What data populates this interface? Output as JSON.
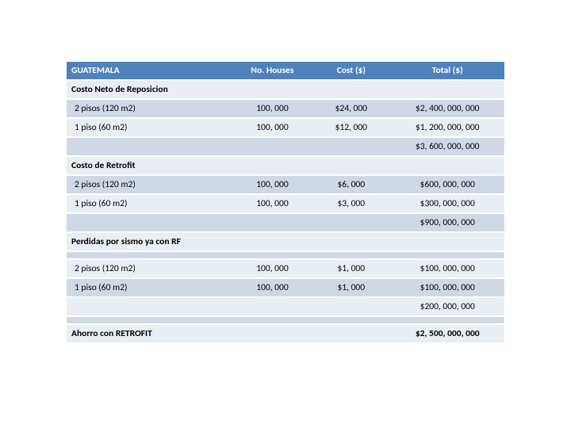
{
  "header": {
    "c0": "GUATEMALA",
    "c1": "No. Houses",
    "c2": "Cost ($)",
    "c3": "Total ($)"
  },
  "rows": [
    {
      "label": "Costo Neto de Reposicion",
      "houses": "",
      "cost": "",
      "total": "",
      "bold": true,
      "band": "plain"
    },
    {
      "label": "2 pisos (120 m2)",
      "houses": "100, 000",
      "cost": "$24, 000",
      "total": "$2, 400, 000, 000",
      "bold": false,
      "band": "band",
      "indent": true
    },
    {
      "label": "1 piso (60 m2)",
      "houses": "100, 000",
      "cost": "$12, 000",
      "total": "$1, 200, 000, 000",
      "bold": false,
      "band": "plain",
      "indent": true
    },
    {
      "label": "",
      "houses": "",
      "cost": "",
      "total": "$3, 600, 000, 000",
      "bold": false,
      "band": "band"
    },
    {
      "label": "Costo de Retrofit",
      "houses": "",
      "cost": "",
      "total": "",
      "bold": true,
      "band": "plain"
    },
    {
      "label": "2 pisos (120 m2)",
      "houses": "100, 000",
      "cost": "$6, 000",
      "total": "$600, 000, 000",
      "bold": false,
      "band": "band",
      "indent": true
    },
    {
      "label": "1 piso (60 m2)",
      "houses": "100, 000",
      "cost": "$3, 000",
      "total": "$300, 000, 000",
      "bold": false,
      "band": "plain",
      "indent": true
    },
    {
      "label": "",
      "houses": "",
      "cost": "",
      "total": "$900, 000, 000",
      "bold": false,
      "band": "band"
    },
    {
      "label": "Perdidas por sismo ya con RF",
      "houses": "",
      "cost": "",
      "total": "",
      "bold": true,
      "band": "plain"
    },
    {
      "label": "",
      "houses": "",
      "cost": "",
      "total": "",
      "bold": false,
      "band": "band"
    },
    {
      "label": "2 pisos (120 m2)",
      "houses": "100, 000",
      "cost": "$1, 000",
      "total": "$100, 000, 000",
      "bold": false,
      "band": "plain",
      "indent": true
    },
    {
      "label": "1 piso (60 m2)",
      "houses": "100, 000",
      "cost": "$1, 000",
      "total": "$100, 000, 000",
      "bold": false,
      "band": "band",
      "indent": true
    },
    {
      "label": "",
      "houses": "",
      "cost": "",
      "total": "$200, 000, 000",
      "bold": false,
      "band": "plain"
    },
    {
      "label": "",
      "houses": "",
      "cost": "",
      "total": "",
      "bold": false,
      "band": "band"
    },
    {
      "label": "Ahorro con  RETROFIT",
      "houses": "",
      "cost": "",
      "total": "$2, 500, 000, 000",
      "bold": true,
      "band": "plain"
    }
  ]
}
